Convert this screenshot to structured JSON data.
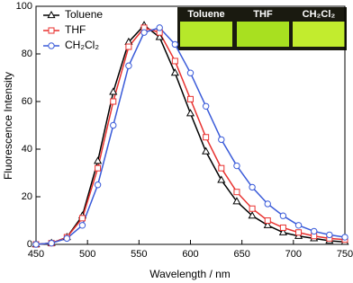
{
  "chart_data": {
    "type": "line",
    "x_label": "Wavelength / nm",
    "y_label": "Fluorescence Intensity",
    "x": [
      450,
      465,
      480,
      495,
      510,
      525,
      540,
      555,
      570,
      585,
      600,
      615,
      630,
      645,
      660,
      675,
      690,
      705,
      720,
      735,
      750
    ],
    "series": [
      {
        "name": "Toluene",
        "color": "#000000",
        "marker": "triangle",
        "values": [
          0,
          0.5,
          3,
          12,
          35,
          64,
          85,
          92,
          87,
          72,
          55,
          39,
          27,
          18,
          12,
          8,
          5,
          3.5,
          2.5,
          1.5,
          1
        ]
      },
      {
        "name": "THF",
        "color": "#e8312f",
        "marker": "square",
        "values": [
          0,
          0.5,
          3,
          11,
          32,
          60,
          83,
          91,
          89,
          77,
          61,
          45,
          32,
          22,
          15,
          10,
          7,
          5,
          3.5,
          2.5,
          2
        ]
      },
      {
        "name": "CH₂Cl₂",
        "color": "#3a5bd9",
        "marker": "circle",
        "values": [
          0,
          0.5,
          2.5,
          8,
          25,
          50,
          75,
          89,
          91,
          84,
          72,
          58,
          44,
          33,
          24,
          17,
          12,
          8,
          5.5,
          4,
          3
        ]
      }
    ],
    "xlim": [
      450,
      750
    ],
    "xticks": [
      450,
      500,
      550,
      600,
      650,
      700,
      750
    ],
    "ylim": [
      0,
      100
    ],
    "yticks": [
      0,
      20,
      40,
      60,
      80,
      100
    ],
    "legend": "upper left",
    "annotations": [
      "Toluene",
      "THF",
      "CH₂Cl₂"
    ]
  }
}
